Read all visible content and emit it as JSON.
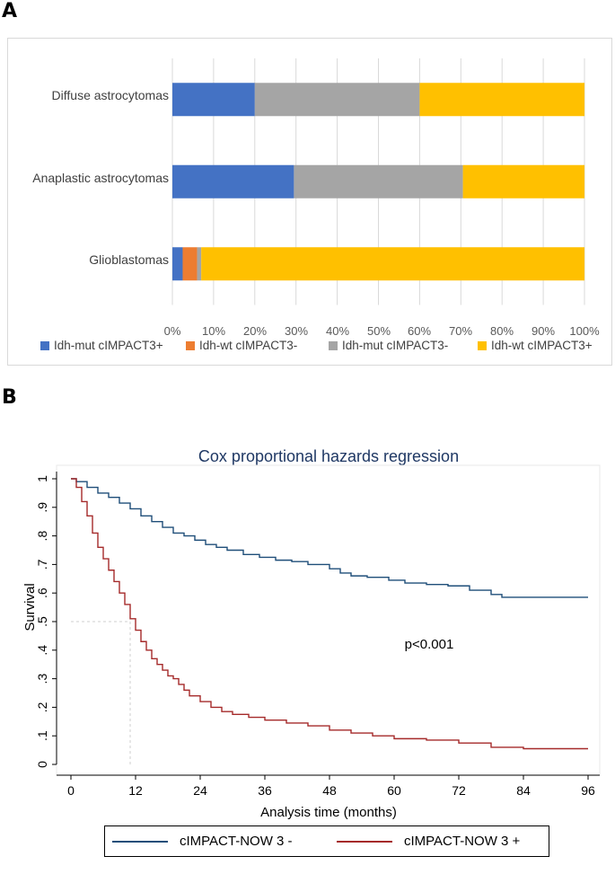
{
  "panel_a_letter": "A",
  "panel_b_letter": "B",
  "chart_data": [
    {
      "type": "bar",
      "orientation": "horizontal",
      "stacked": "100%",
      "categories": [
        "Diffuse astrocytomas",
        "Anaplastic astrocytomas",
        "Glioblastomas"
      ],
      "series": [
        {
          "name": "Idh-mut cIMPACT3+",
          "color": "#4472C4",
          "values": [
            20,
            29.5,
            2.5
          ]
        },
        {
          "name": "Idh-wt cIMPACT3-",
          "color": "#ED7D31",
          "values": [
            0,
            0,
            3.5
          ]
        },
        {
          "name": "Idh-mut cIMPACT3-",
          "color": "#A5A5A5",
          "values": [
            40,
            41,
            1
          ]
        },
        {
          "name": "Idh-wt cIMPACT3+",
          "color": "#FFC000",
          "values": [
            40,
            29.5,
            93
          ]
        }
      ],
      "xlim": [
        0,
        100
      ],
      "xticks": [
        "0%",
        "10%",
        "20%",
        "30%",
        "40%",
        "50%",
        "60%",
        "70%",
        "80%",
        "90%",
        "100%"
      ],
      "legend_position": "bottom",
      "grid": true
    },
    {
      "type": "line",
      "subtype": "kaplan-meier",
      "title": "Cox proportional hazards regression",
      "xlabel": "Analysis time (months)",
      "ylabel": "Survival",
      "xlim": [
        0,
        96
      ],
      "ylim": [
        0,
        1
      ],
      "xticks": [
        "0",
        "12",
        "24",
        "36",
        "48",
        "60",
        "72",
        "84",
        "96"
      ],
      "yticks": [
        "0",
        ".1",
        ".2",
        ".3",
        ".4",
        ".5",
        ".6",
        ".7",
        ".8",
        ".9",
        "1"
      ],
      "annotation": "p<0.001",
      "median_marker": {
        "x": 11,
        "y": 0.5
      },
      "legend_position": "bottom",
      "series": [
        {
          "name": "cIMPACT-NOW 3 -",
          "color": "#1F4E79",
          "points": [
            [
              0,
              1
            ],
            [
              1,
              0.99
            ],
            [
              3,
              0.97
            ],
            [
              5,
              0.95
            ],
            [
              7,
              0.935
            ],
            [
              9,
              0.915
            ],
            [
              11,
              0.895
            ],
            [
              13,
              0.87
            ],
            [
              15,
              0.85
            ],
            [
              17,
              0.83
            ],
            [
              19,
              0.81
            ],
            [
              21,
              0.8
            ],
            [
              23,
              0.785
            ],
            [
              25,
              0.77
            ],
            [
              27,
              0.76
            ],
            [
              29,
              0.75
            ],
            [
              32,
              0.735
            ],
            [
              35,
              0.725
            ],
            [
              38,
              0.715
            ],
            [
              41,
              0.71
            ],
            [
              44,
              0.7
            ],
            [
              48,
              0.685
            ],
            [
              50,
              0.67
            ],
            [
              52,
              0.66
            ],
            [
              55,
              0.655
            ],
            [
              59,
              0.645
            ],
            [
              62,
              0.635
            ],
            [
              66,
              0.63
            ],
            [
              70,
              0.625
            ],
            [
              74,
              0.61
            ],
            [
              78,
              0.595
            ],
            [
              80,
              0.585
            ],
            [
              92,
              0.585
            ],
            [
              96,
              0.585
            ]
          ]
        },
        {
          "name": "cIMPACT-NOW 3 +",
          "color": "#A52A2A",
          "points": [
            [
              0,
              1
            ],
            [
              1,
              0.97
            ],
            [
              2,
              0.92
            ],
            [
              3,
              0.87
            ],
            [
              4,
              0.81
            ],
            [
              5,
              0.76
            ],
            [
              6,
              0.72
            ],
            [
              7,
              0.68
            ],
            [
              8,
              0.64
            ],
            [
              9,
              0.6
            ],
            [
              10,
              0.56
            ],
            [
              11,
              0.51
            ],
            [
              12,
              0.47
            ],
            [
              13,
              0.43
            ],
            [
              14,
              0.4
            ],
            [
              15,
              0.37
            ],
            [
              16,
              0.35
            ],
            [
              17,
              0.33
            ],
            [
              18,
              0.31
            ],
            [
              19,
              0.3
            ],
            [
              20,
              0.28
            ],
            [
              21,
              0.26
            ],
            [
              22,
              0.24
            ],
            [
              24,
              0.22
            ],
            [
              26,
              0.2
            ],
            [
              28,
              0.185
            ],
            [
              30,
              0.175
            ],
            [
              33,
              0.165
            ],
            [
              36,
              0.155
            ],
            [
              40,
              0.145
            ],
            [
              44,
              0.135
            ],
            [
              48,
              0.12
            ],
            [
              52,
              0.11
            ],
            [
              56,
              0.1
            ],
            [
              60,
              0.09
            ],
            [
              66,
              0.085
            ],
            [
              72,
              0.075
            ],
            [
              78,
              0.06
            ],
            [
              84,
              0.055
            ],
            [
              96,
              0.055
            ]
          ]
        }
      ]
    }
  ]
}
